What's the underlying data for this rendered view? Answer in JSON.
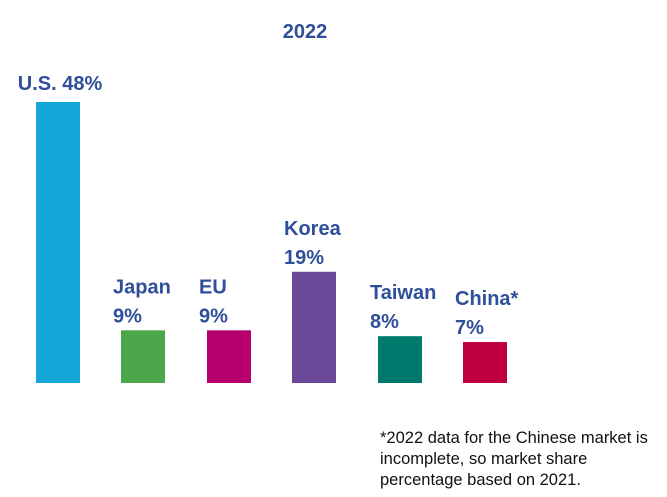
{
  "chart_data": {
    "type": "bar",
    "title": "2022",
    "categories": [
      "U.S.",
      "Japan",
      "EU",
      "Korea",
      "Taiwan",
      "China*"
    ],
    "values": [
      48,
      9,
      9,
      19,
      8,
      7
    ],
    "value_labels": [
      "48%",
      "9%",
      "9%",
      "19%",
      "8%",
      "7%"
    ],
    "label_style": [
      "inline",
      "stacked",
      "stacked",
      "stacked",
      "stacked",
      "stacked"
    ],
    "colors": [
      "#14a8d8",
      "#4ca64c",
      "#b5006e",
      "#6a4a98",
      "#007a6c",
      "#be0041"
    ],
    "ylim": [
      0,
      48
    ],
    "xlabel": "",
    "ylabel": "",
    "grid": false,
    "legend": "none"
  },
  "footnote": "*2022 data for the Chinese market is incomplete, so market share percentage based on 2021."
}
